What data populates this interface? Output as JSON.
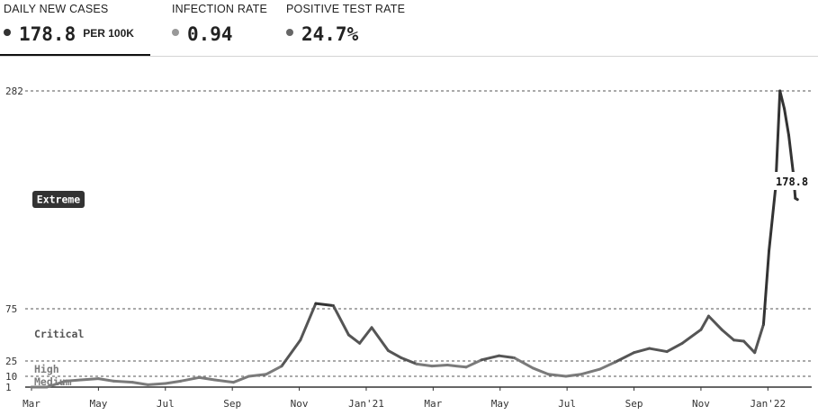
{
  "tabs": [
    {
      "label": "DAILY NEW CASES",
      "value": "178.8",
      "unit": "PER 100K",
      "dot_color": "#333333",
      "active": true
    },
    {
      "label": "INFECTION RATE",
      "value": "0.94",
      "unit": "",
      "dot_color": "#999999",
      "active": false
    },
    {
      "label": "POSITIVE TEST RATE",
      "value": "24.7%",
      "unit": "",
      "dot_color": "#666666",
      "active": false
    }
  ],
  "chart_data": {
    "type": "line",
    "y_ticks": [
      1,
      10,
      25,
      75,
      282
    ],
    "x_tick_labels": [
      "Mar",
      "May",
      "Jul",
      "Sep",
      "Nov",
      "Jan'21",
      "Mar",
      "May",
      "Jul",
      "Sep",
      "Nov",
      "Jan'22"
    ],
    "x_range": [
      "2020-03-01",
      "2022-02-05"
    ],
    "risk_levels": [
      {
        "name": "Medium",
        "threshold": 1,
        "color": "#7a7a7a"
      },
      {
        "name": "High",
        "threshold": 10,
        "color": "#7a7a7a"
      },
      {
        "name": "Critical",
        "threshold": 25,
        "color": "#555555"
      },
      {
        "name": "Extreme",
        "threshold": 75,
        "color": "#333333"
      }
    ],
    "series": [
      {
        "values": [
          [
            "2020-03-01",
            0
          ],
          [
            "2020-03-15",
            0.5
          ],
          [
            "2020-04-01",
            6
          ],
          [
            "2020-04-15",
            7
          ],
          [
            "2020-05-01",
            8
          ],
          [
            "2020-05-15",
            6
          ],
          [
            "2020-06-01",
            5
          ],
          [
            "2020-06-15",
            3
          ],
          [
            "2020-07-01",
            4
          ],
          [
            "2020-07-15",
            6
          ],
          [
            "2020-08-01",
            9
          ],
          [
            "2020-08-15",
            7
          ],
          [
            "2020-09-01",
            5
          ],
          [
            "2020-09-15",
            10
          ],
          [
            "2020-10-01",
            12
          ],
          [
            "2020-10-15",
            20
          ],
          [
            "2020-11-01",
            45
          ],
          [
            "2020-11-15",
            80
          ],
          [
            "2020-12-01",
            78
          ],
          [
            "2020-12-15",
            50
          ],
          [
            "2020-12-25",
            42
          ],
          [
            "2021-01-05",
            57
          ],
          [
            "2021-01-20",
            35
          ],
          [
            "2021-02-01",
            28
          ],
          [
            "2021-02-15",
            22
          ],
          [
            "2021-03-01",
            20
          ],
          [
            "2021-03-15",
            21
          ],
          [
            "2021-04-01",
            19
          ],
          [
            "2021-04-15",
            26
          ],
          [
            "2021-05-01",
            30
          ],
          [
            "2021-05-15",
            28
          ],
          [
            "2021-06-01",
            18
          ],
          [
            "2021-06-15",
            12
          ],
          [
            "2021-07-01",
            10
          ],
          [
            "2021-07-15",
            12
          ],
          [
            "2021-08-01",
            17
          ],
          [
            "2021-08-15",
            24
          ],
          [
            "2021-09-01",
            33
          ],
          [
            "2021-09-15",
            37
          ],
          [
            "2021-10-01",
            34
          ],
          [
            "2021-10-15",
            42
          ],
          [
            "2021-11-01",
            55
          ],
          [
            "2021-11-08",
            68
          ],
          [
            "2021-11-20",
            55
          ],
          [
            "2021-12-01",
            45
          ],
          [
            "2021-12-10",
            44
          ],
          [
            "2021-12-20",
            33
          ],
          [
            "2021-12-28",
            60
          ],
          [
            "2022-01-02",
            130
          ],
          [
            "2022-01-08",
            190
          ],
          [
            "2022-01-12",
            282
          ],
          [
            "2022-01-16",
            265
          ],
          [
            "2022-01-20",
            240
          ],
          [
            "2022-01-24",
            205
          ],
          [
            "2022-01-26",
            180
          ],
          [
            "2022-01-28",
            178.8
          ]
        ]
      }
    ],
    "last_value_label": "178.8",
    "grid": true
  }
}
